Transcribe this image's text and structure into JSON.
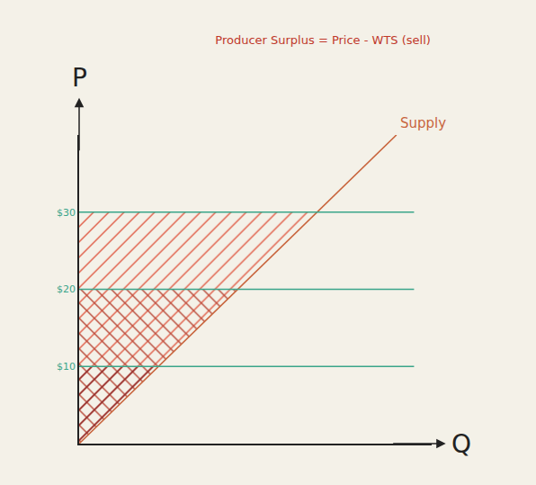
{
  "chart_data": {
    "type": "line",
    "title": "Producer Surplus = Price - WTS (sell)",
    "x_label": "Q",
    "y_label": "P",
    "series": [
      {
        "name": "Supply",
        "color": "#c8643c",
        "x": [
          0,
          9
        ],
        "values": [
          0,
          40
        ]
      }
    ],
    "xlim": [
      0,
      10
    ],
    "ylim": [
      0,
      40
    ],
    "yticks": [
      {
        "value": 10,
        "label": "$10"
      },
      {
        "value": 20,
        "label": "$20"
      },
      {
        "value": 30,
        "label": "$30"
      }
    ],
    "tick_labels": "y",
    "grid": false
  }
}
